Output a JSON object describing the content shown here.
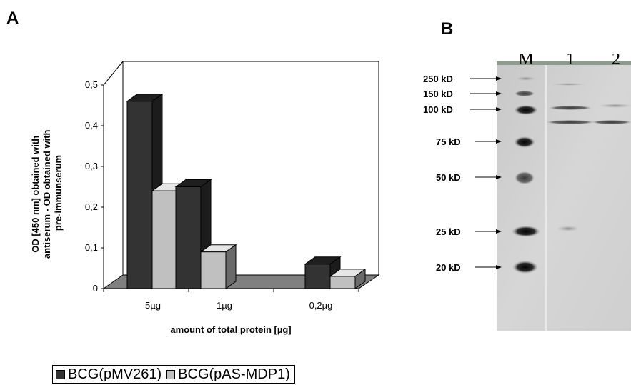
{
  "panel_labels": {
    "a": "A",
    "b": "B"
  },
  "chart_data": {
    "type": "bar",
    "categories": [
      "5µg",
      "1µg",
      "0,2µg"
    ],
    "series": [
      {
        "name": "BCG(pMV261)",
        "values": [
          0.46,
          0.25,
          0.06
        ],
        "color": "#333333"
      },
      {
        "name": "BCG(pAS-MDP1)",
        "values": [
          0.24,
          0.09,
          0.03
        ],
        "color": "#c0c0c0"
      }
    ],
    "yticks": [
      "0",
      "0,1",
      "0,2",
      "0,3",
      "0,4",
      "0,5"
    ],
    "ylim": [
      0,
      0.5
    ],
    "xlabel": "amount of total protein [µg]",
    "ylabel_lines": [
      "OD [450 nm] obtained with",
      "antiserum - OD obtained with",
      "pre-immunserum"
    ],
    "legend_position": "bottom-left",
    "grid": false
  },
  "blot": {
    "lane_labels": [
      "M",
      "1",
      "2"
    ],
    "markers": [
      "250 kD",
      "150 kD",
      "100 kD",
      "75 kD",
      "50 kD",
      "25 kD",
      "20 kD"
    ]
  }
}
